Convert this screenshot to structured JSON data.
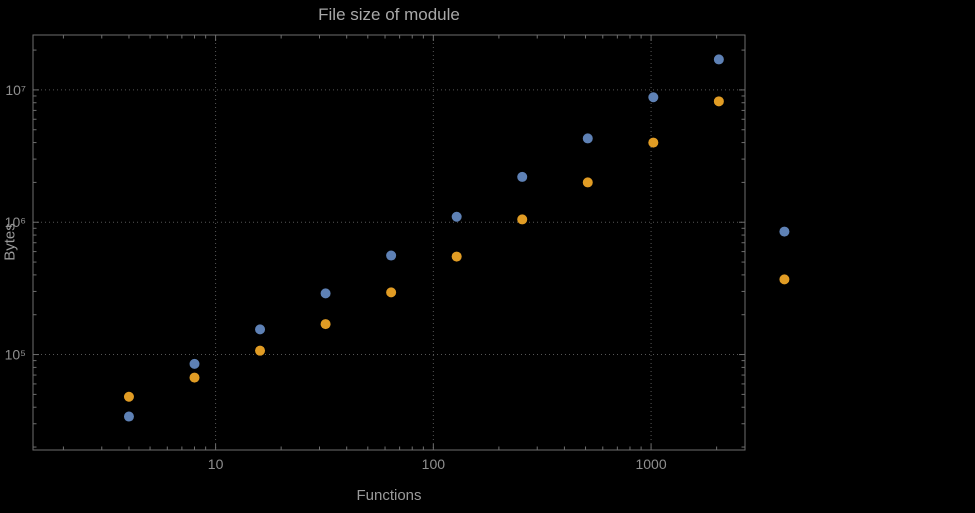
{
  "chart_data": {
    "type": "scatter",
    "title": "File size of module",
    "xlabel": "Functions",
    "ylabel": "Bytes",
    "x_scale": "log",
    "y_scale": "log",
    "grid": "dotted",
    "legend": "none",
    "xlim": [
      1.45,
      2700
    ],
    "ylim": [
      19000,
      26000000
    ],
    "x": [
      4,
      8,
      16,
      32,
      64,
      128,
      256,
      512,
      1024,
      2048,
      4096
    ],
    "series": [
      {
        "name": "blue",
        "color": "#5e81b5",
        "values": [
          34000,
          85000,
          155000,
          290000,
          560000,
          1100000,
          2200000,
          4300000,
          8800000,
          17000000,
          850000
        ]
      },
      {
        "name": "orange",
        "color": "#e19c24",
        "values": [
          48000,
          67000,
          107000,
          170000,
          295000,
          550000,
          1050000,
          2000000,
          4000000,
          8200000,
          370000
        ]
      }
    ],
    "x_ticks": [
      {
        "value": 10,
        "label": "10"
      },
      {
        "value": 100,
        "label": "100"
      },
      {
        "value": 1000,
        "label": "1000"
      }
    ],
    "y_ticks": [
      {
        "value": 100000,
        "label": "10⁵"
      },
      {
        "value": 1000000,
        "label": "10⁶"
      },
      {
        "value": 10000000,
        "label": "10⁷"
      }
    ]
  },
  "colors": {
    "background": "#000000",
    "frame": "#6e6e6e",
    "grid": "#565656",
    "tick_text": "#8f8f8f",
    "title_text": "#a8a8a8",
    "axis_label_text": "#9a9a9a",
    "series_blue": "#5e81b5",
    "series_orange": "#e19c24"
  }
}
